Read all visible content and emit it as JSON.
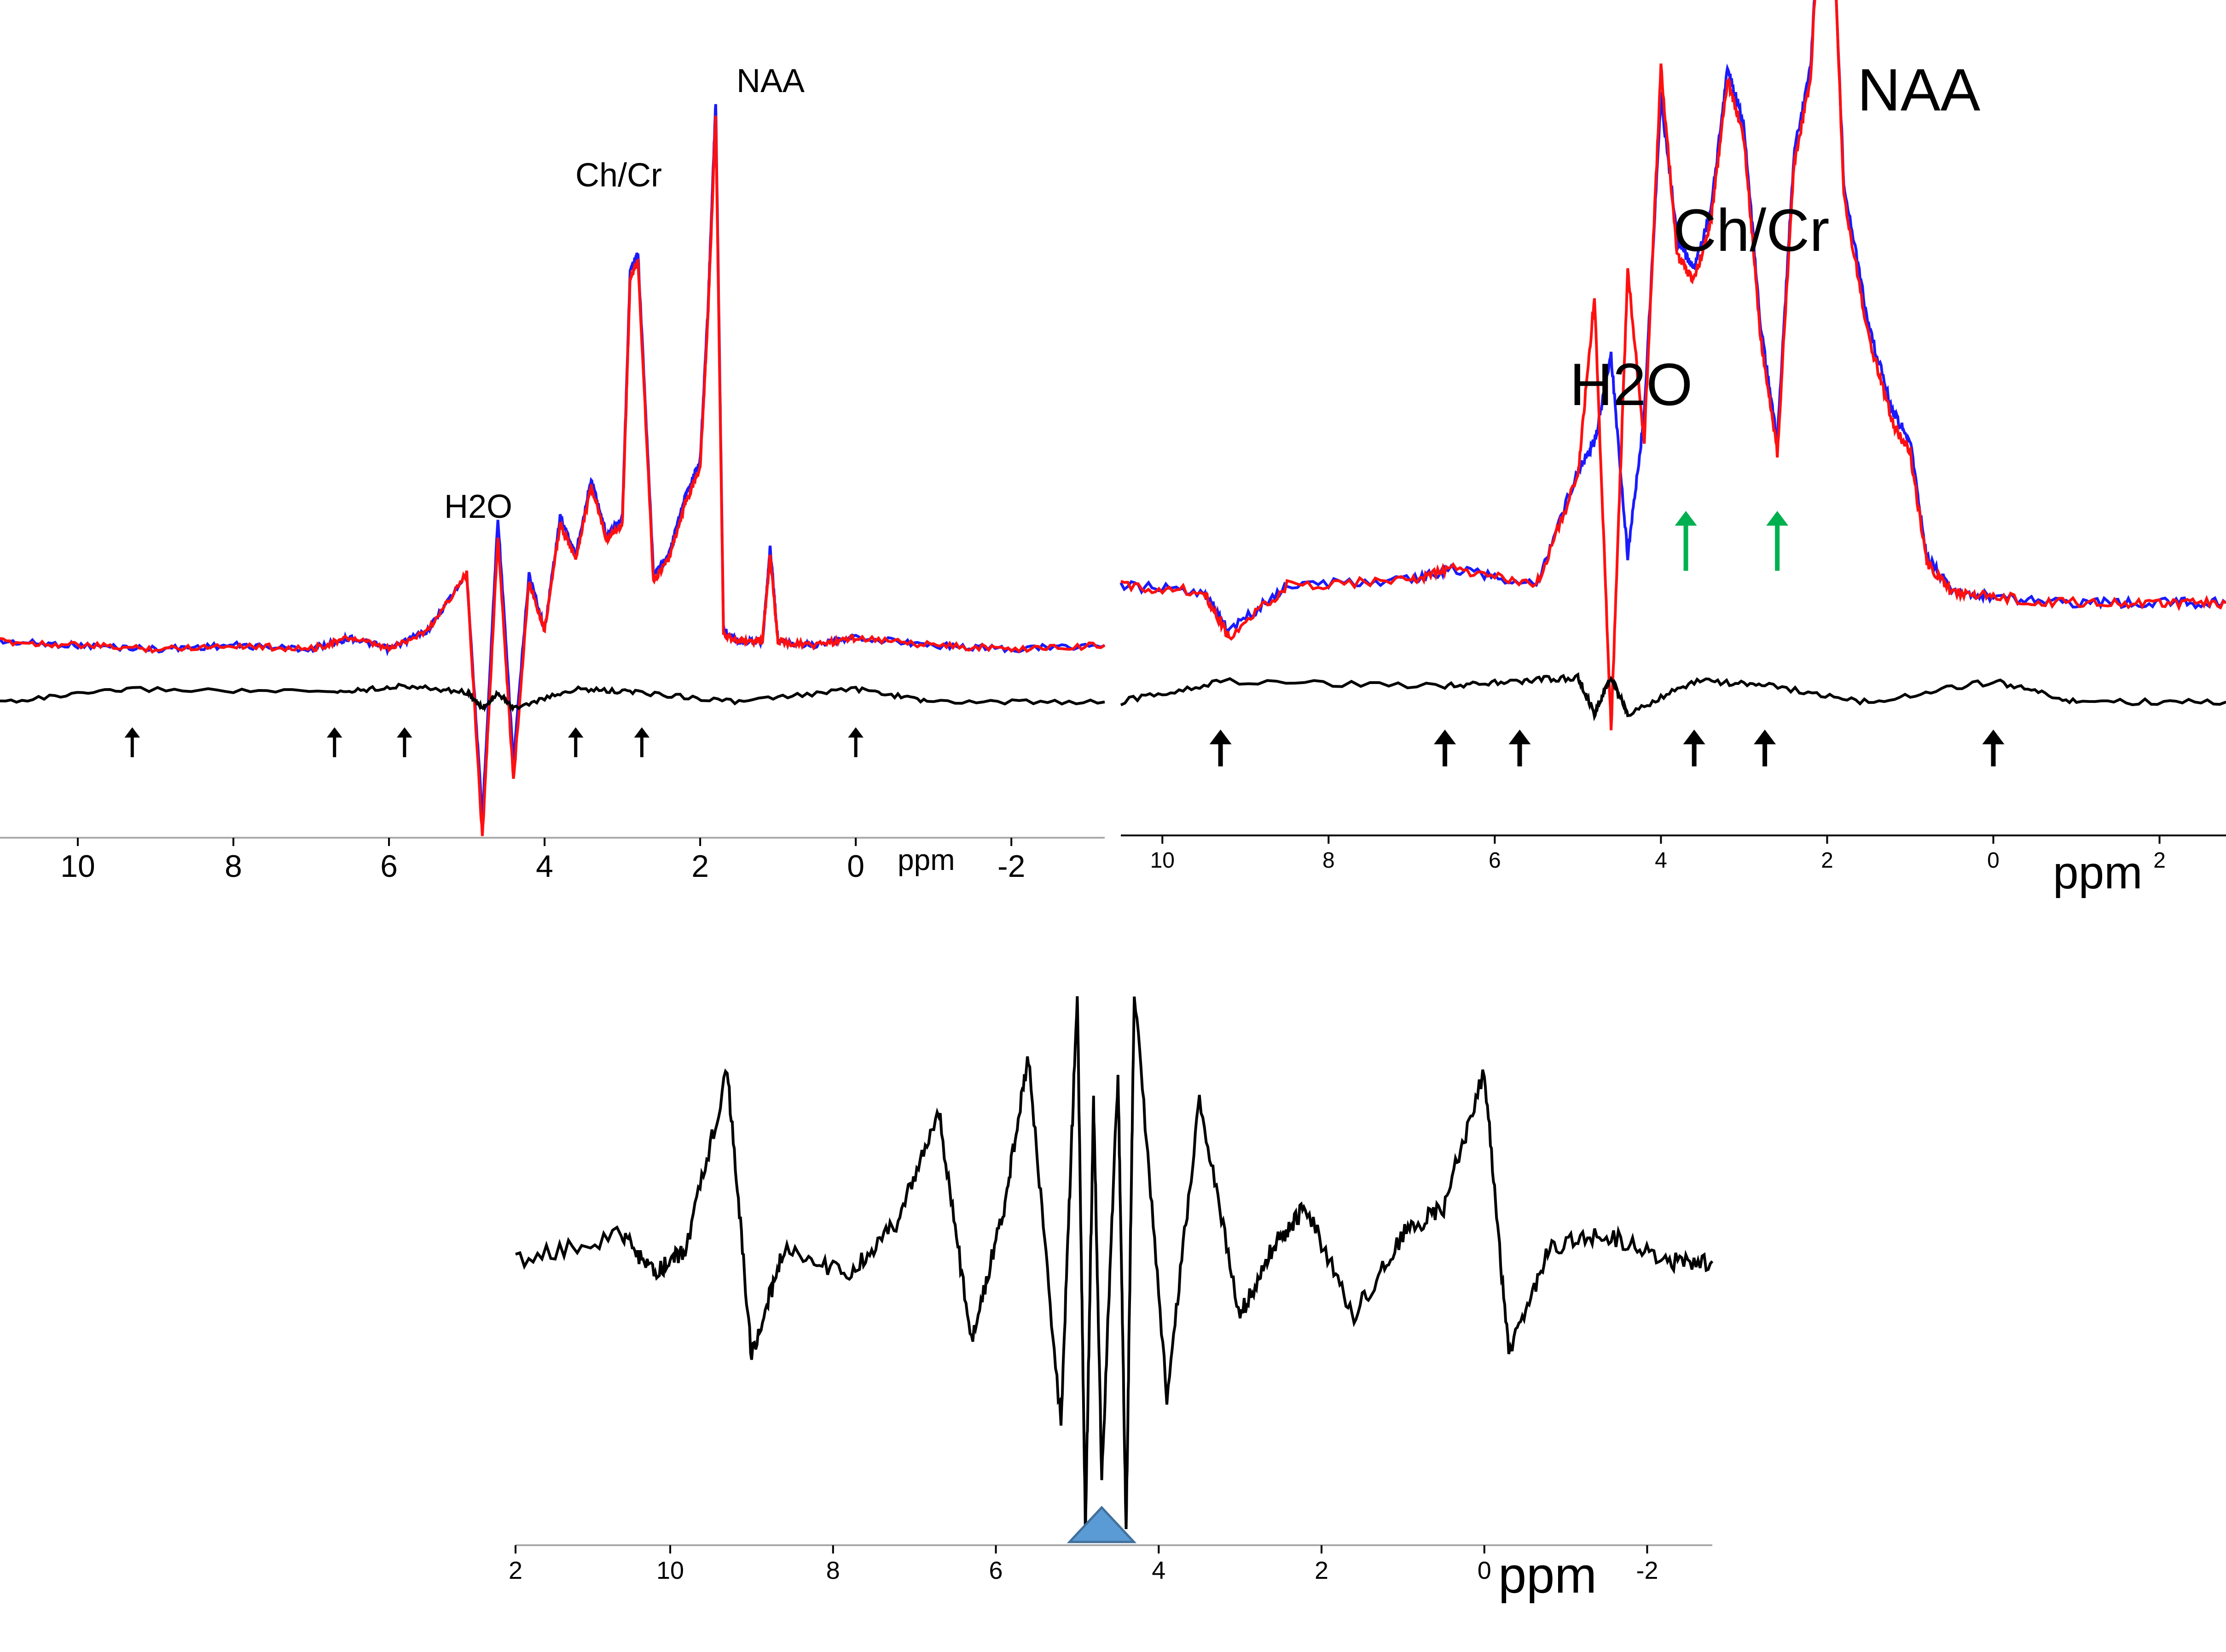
{
  "colors": {
    "blue": "#1a1aff",
    "red": "#ff1010",
    "black": "#000000",
    "green": "#00b050",
    "triangle_fill": "#5b9bd5",
    "triangle_stroke": "#41719c"
  },
  "chart_data": [
    {
      "id": "top-left",
      "type": "line",
      "xlabel": "ppm",
      "x_reversed": true,
      "xlim": [
        11,
        -3.2
      ],
      "xticks": [
        "10",
        "8",
        "6",
        "4",
        "2",
        "0",
        "-2"
      ],
      "annotations": [
        "NAA",
        "Ch/Cr",
        "H2O"
      ],
      "series": [
        {
          "role": "spectrum-blue",
          "color": "blue",
          "x": [
            11,
            10,
            9,
            8,
            7,
            6.5,
            6,
            5.5,
            5,
            4.8,
            4.6,
            4.4,
            4.2,
            4.0,
            3.8,
            3.6,
            3.4,
            3.2,
            3.0,
            2.9,
            2.8,
            2.6,
            2.4,
            2.2,
            2.0,
            1.9,
            1.8,
            1.7,
            1.5,
            1.2,
            1.1,
            1.0,
            0.5,
            0,
            -1,
            -2,
            -3.2
          ],
          "y": [
            0.02,
            0.01,
            0.0,
            0.01,
            0.0,
            0.03,
            0.0,
            0.05,
            0.2,
            -0.45,
            0.35,
            -0.3,
            0.2,
            0.05,
            0.35,
            0.25,
            0.45,
            0.3,
            0.35,
            1.0,
            1.05,
            0.2,
            0.25,
            0.4,
            0.5,
            0.9,
            1.45,
            0.05,
            0.02,
            0.02,
            0.27,
            0.02,
            0.01,
            0.03,
            0.01,
            0.0,
            0.01
          ]
        },
        {
          "role": "spectrum-red",
          "color": "red",
          "x": [
            11,
            10,
            9,
            8,
            7,
            6.5,
            6,
            5.5,
            5,
            4.8,
            4.6,
            4.4,
            4.2,
            4.0,
            3.8,
            3.6,
            3.4,
            3.2,
            3.0,
            2.9,
            2.8,
            2.6,
            2.4,
            2.2,
            2.0,
            1.9,
            1.8,
            1.7,
            1.5,
            1.2,
            1.1,
            1.0,
            0.5,
            0,
            -1,
            -2,
            -3.2
          ],
          "y": [
            0.02,
            0.01,
            0.0,
            0.01,
            0.0,
            0.03,
            0.0,
            0.05,
            0.2,
            -0.5,
            0.3,
            -0.35,
            0.18,
            0.05,
            0.33,
            0.24,
            0.43,
            0.29,
            0.33,
            0.98,
            1.03,
            0.18,
            0.24,
            0.38,
            0.48,
            0.88,
            1.42,
            0.04,
            0.02,
            0.02,
            0.25,
            0.02,
            0.01,
            0.03,
            0.01,
            0.0,
            0.01
          ]
        },
        {
          "role": "residual-black",
          "color": "black",
          "x": [
            11,
            9.3,
            6.7,
            5.8,
            5,
            4.8,
            4.6,
            4.4,
            3.6,
            2.8,
            1.5,
            0,
            -1,
            -3.2
          ],
          "y": [
            0.0,
            0.04,
            0.03,
            0.05,
            0.03,
            -0.02,
            0.03,
            -0.02,
            0.04,
            0.03,
            0.0,
            0.04,
            0.0,
            0.0
          ]
        }
      ],
      "arrows_ppm": [
        9.3,
        6.7,
        5.8,
        3.6,
        2.75,
        0
      ]
    },
    {
      "id": "top-right",
      "type": "line",
      "xlabel": "ppm",
      "x_reversed": true,
      "xlim": [
        10.5,
        -2.8
      ],
      "xticks": [
        "10",
        "8",
        "6",
        "4",
        "2",
        "0",
        "2"
      ],
      "annotations": [
        "NAA",
        "Ch/Cr",
        "H2O"
      ],
      "series": [
        {
          "role": "spectrum-blue",
          "color": "blue",
          "x": [
            10.5,
            9.5,
            9.2,
            8.5,
            7,
            6.5,
            5.5,
            5,
            4.8,
            4.6,
            4.4,
            4.2,
            4.0,
            3.8,
            3.6,
            3.4,
            3.2,
            3.0,
            2.8,
            2.6,
            2.4,
            2.2,
            2.0,
            1.8,
            1.5,
            1.2,
            1.0,
            0.8,
            0.5,
            0,
            -1,
            -2,
            -2.8
          ],
          "y": [
            0.05,
            0.04,
            -0.03,
            0.05,
            0.06,
            0.08,
            0.05,
            0.25,
            0.3,
            0.45,
            0.1,
            0.35,
            0.9,
            0.65,
            0.6,
            0.7,
            0.95,
            0.85,
            0.5,
            0.3,
            0.8,
            0.95,
            1.45,
            0.75,
            0.5,
            0.35,
            0.3,
            0.1,
            0.04,
            0.03,
            0.02,
            0.02,
            0.02
          ]
        },
        {
          "role": "spectrum-red",
          "color": "red",
          "x": [
            10.5,
            9.5,
            9.2,
            8.5,
            7,
            6.5,
            5.5,
            5,
            4.8,
            4.6,
            4.4,
            4.2,
            4.0,
            3.8,
            3.6,
            3.4,
            3.2,
            3.0,
            2.8,
            2.6,
            2.4,
            2.2,
            2.0,
            1.8,
            1.5,
            1.2,
            1.0,
            0.8,
            0.5,
            0,
            -1,
            -2,
            -2.8
          ],
          "y": [
            0.05,
            0.04,
            -0.04,
            0.05,
            0.06,
            0.08,
            0.05,
            0.24,
            0.55,
            -0.2,
            0.6,
            0.3,
            0.95,
            0.62,
            0.58,
            0.68,
            0.93,
            0.83,
            0.48,
            0.28,
            0.78,
            0.93,
            1.48,
            0.73,
            0.48,
            0.33,
            0.28,
            0.09,
            0.04,
            0.03,
            0.02,
            0.02,
            0.02
          ]
        },
        {
          "role": "residual-black",
          "color": "black",
          "x": [
            10.5,
            9.3,
            6.6,
            5.7,
            5,
            4.8,
            4.6,
            4.4,
            3.6,
            2.75,
            1.5,
            0,
            -1,
            -2.8
          ],
          "y": [
            0.0,
            0.05,
            0.04,
            0.05,
            0.06,
            -0.03,
            0.06,
            -0.03,
            0.05,
            0.04,
            0.0,
            0.05,
            0.0,
            0.0
          ]
        }
      ],
      "arrows_ppm": [
        9.3,
        6.6,
        5.7,
        3.6,
        2.75,
        0
      ],
      "green_arrows_ppm": [
        3.7,
        2.6
      ]
    },
    {
      "id": "bottom",
      "type": "line",
      "xlabel": "ppm",
      "x_reversed": true,
      "xlim": [
        11.9,
        -2.8
      ],
      "xticks": [
        "2",
        "10",
        "8",
        "6",
        "4",
        "2",
        "0",
        "-2"
      ],
      "series": [
        {
          "role": "difference-black",
          "color": "black",
          "x": [
            11.9,
            10.6,
            10.2,
            9.8,
            9.3,
            9.0,
            8.6,
            7.8,
            7.2,
            6.7,
            6.3,
            5.9,
            5.6,
            5.2,
            5.0,
            4.9,
            4.8,
            4.7,
            4.5,
            4.4,
            4.3,
            3.9,
            3.5,
            3.0,
            2.6,
            2.2,
            1.6,
            1.0,
            0.5,
            0.0,
            -0.3,
            -0.8,
            -1.5,
            -2.2,
            -2.8
          ],
          "y": [
            0.0,
            0.1,
            -0.05,
            0.05,
            0.7,
            -0.35,
            0.05,
            -0.05,
            0.15,
            0.55,
            -0.3,
            0.2,
            0.75,
            -0.6,
            1.0,
            -1.0,
            0.6,
            -0.8,
            0.7,
            -1.0,
            1.0,
            -0.5,
            0.6,
            -0.2,
            0.05,
            0.2,
            -0.2,
            0.1,
            0.2,
            0.7,
            -0.35,
            0.05,
            0.1,
            0.0,
            0.0
          ]
        }
      ],
      "marker_ppm": 4.7
    }
  ]
}
